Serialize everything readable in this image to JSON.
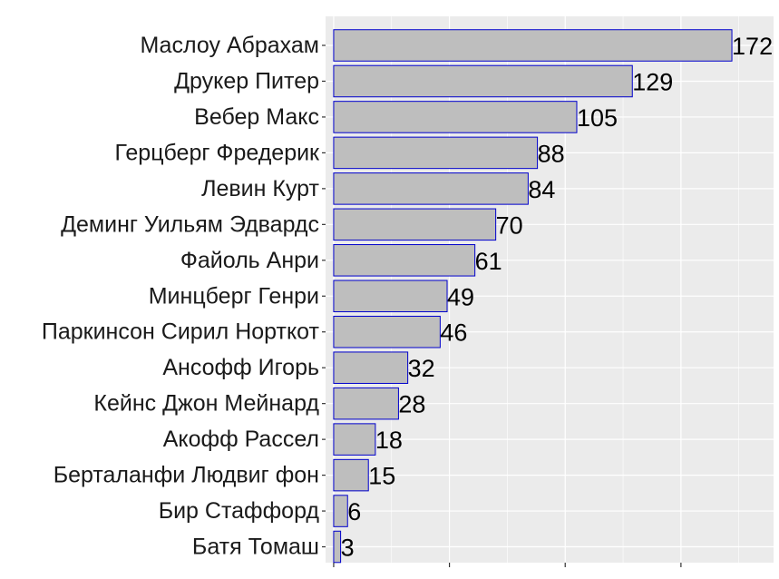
{
  "chart_data": {
    "type": "bar",
    "orientation": "horizontal",
    "categories": [
      "Маслоу Абрахам",
      "Друкер Питер",
      "Вебер Макс",
      "Герцберг Фредерик",
      "Левин Курт",
      "Деминг Уильям Эдвардс",
      "Файоль Анри",
      "Минцберг Генри",
      "Паркинсон Сирил Норткот",
      "Ансофф Игорь",
      "Кейнс Джон Мейнард",
      "Акофф Рассел",
      "Берталанфи Людвиг фон",
      "Бир Стаффорд",
      "Батя Томаш"
    ],
    "values": [
      172,
      129,
      105,
      88,
      84,
      70,
      61,
      49,
      46,
      32,
      28,
      18,
      15,
      6,
      3
    ],
    "value_labels": [
      "172",
      "129",
      "105",
      "88",
      "84",
      "70",
      "61",
      "49",
      "46",
      "32",
      "28",
      "18",
      "15",
      "6",
      "3"
    ],
    "title": "",
    "xlabel": "",
    "ylabel": "",
    "xlim": [
      -3.5,
      190
    ],
    "x_tick_values": [
      0,
      50,
      100,
      150
    ],
    "x_tick_labels_shown": false,
    "grid": true,
    "legend": "none",
    "colors": {
      "bar_fill": "#bebebe",
      "bar_outline": "#0000cc",
      "panel_background": "#ebebeb",
      "grid": "#ffffff",
      "axis_tick": "#333333"
    }
  }
}
